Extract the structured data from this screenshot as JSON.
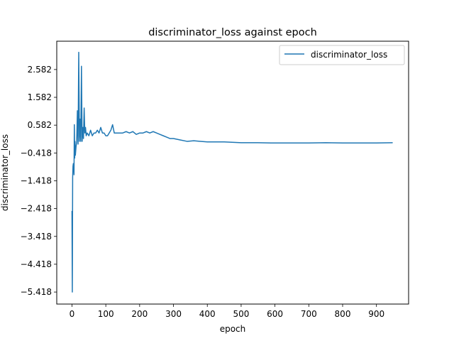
{
  "chart_data": {
    "type": "line",
    "title": "discriminator_loss against epoch",
    "xlabel": "epoch",
    "ylabel": "discriminator_loss",
    "xlim": [
      -45,
      995
    ],
    "ylim": [
      -5.85,
      3.6
    ],
    "x_ticks": [
      0,
      100,
      200,
      300,
      400,
      500,
      600,
      700,
      800,
      900
    ],
    "x_tick_labels": [
      "0",
      "100",
      "200",
      "300",
      "400",
      "500",
      "600",
      "700",
      "800",
      "900"
    ],
    "y_ticks": [
      -5.418,
      -4.418,
      -3.418,
      -2.418,
      -1.418,
      -0.418,
      0.582,
      1.582,
      2.582
    ],
    "y_tick_labels": [
      "−5.418",
      "−4.418",
      "−3.418",
      "−2.418",
      "−1.418",
      "−0.418",
      "0.582",
      "1.582",
      "2.582"
    ],
    "grid": false,
    "legend_position": "top-right",
    "series": [
      {
        "name": "discriminator_loss",
        "color": "#1f77b4",
        "x": [
          0,
          1,
          2,
          3,
          4,
          5,
          6,
          7,
          8,
          9,
          10,
          12,
          14,
          16,
          18,
          20,
          22,
          24,
          26,
          28,
          30,
          32,
          34,
          36,
          38,
          40,
          42,
          45,
          50,
          55,
          60,
          65,
          70,
          75,
          80,
          85,
          90,
          95,
          100,
          105,
          110,
          115,
          120,
          125,
          130,
          140,
          150,
          160,
          170,
          180,
          190,
          200,
          210,
          220,
          230,
          240,
          250,
          260,
          270,
          280,
          290,
          300,
          320,
          340,
          360,
          380,
          400,
          450,
          500,
          550,
          600,
          650,
          700,
          750,
          800,
          850,
          900,
          948
        ],
        "y": [
          -2.5,
          -5.418,
          -1.3,
          -0.9,
          -0.8,
          -0.9,
          -1.2,
          0.6,
          -0.6,
          0.0,
          -0.5,
          -0.2,
          0.0,
          1.1,
          -0.1,
          3.2,
          0.0,
          0.8,
          0.0,
          2.7,
          0.0,
          0.5,
          0.1,
          1.2,
          0.3,
          0.5,
          0.2,
          0.3,
          0.2,
          0.4,
          0.2,
          0.3,
          0.3,
          0.4,
          0.3,
          0.5,
          0.3,
          0.3,
          0.2,
          0.2,
          0.3,
          0.4,
          0.6,
          0.3,
          0.3,
          0.3,
          0.3,
          0.35,
          0.3,
          0.35,
          0.25,
          0.3,
          0.3,
          0.35,
          0.3,
          0.35,
          0.3,
          0.25,
          0.2,
          0.15,
          0.1,
          0.1,
          0.05,
          0.0,
          0.02,
          0.0,
          -0.02,
          -0.02,
          -0.05,
          -0.05,
          -0.06,
          -0.06,
          -0.06,
          -0.05,
          -0.06,
          -0.06,
          -0.06,
          -0.05
        ]
      }
    ]
  }
}
